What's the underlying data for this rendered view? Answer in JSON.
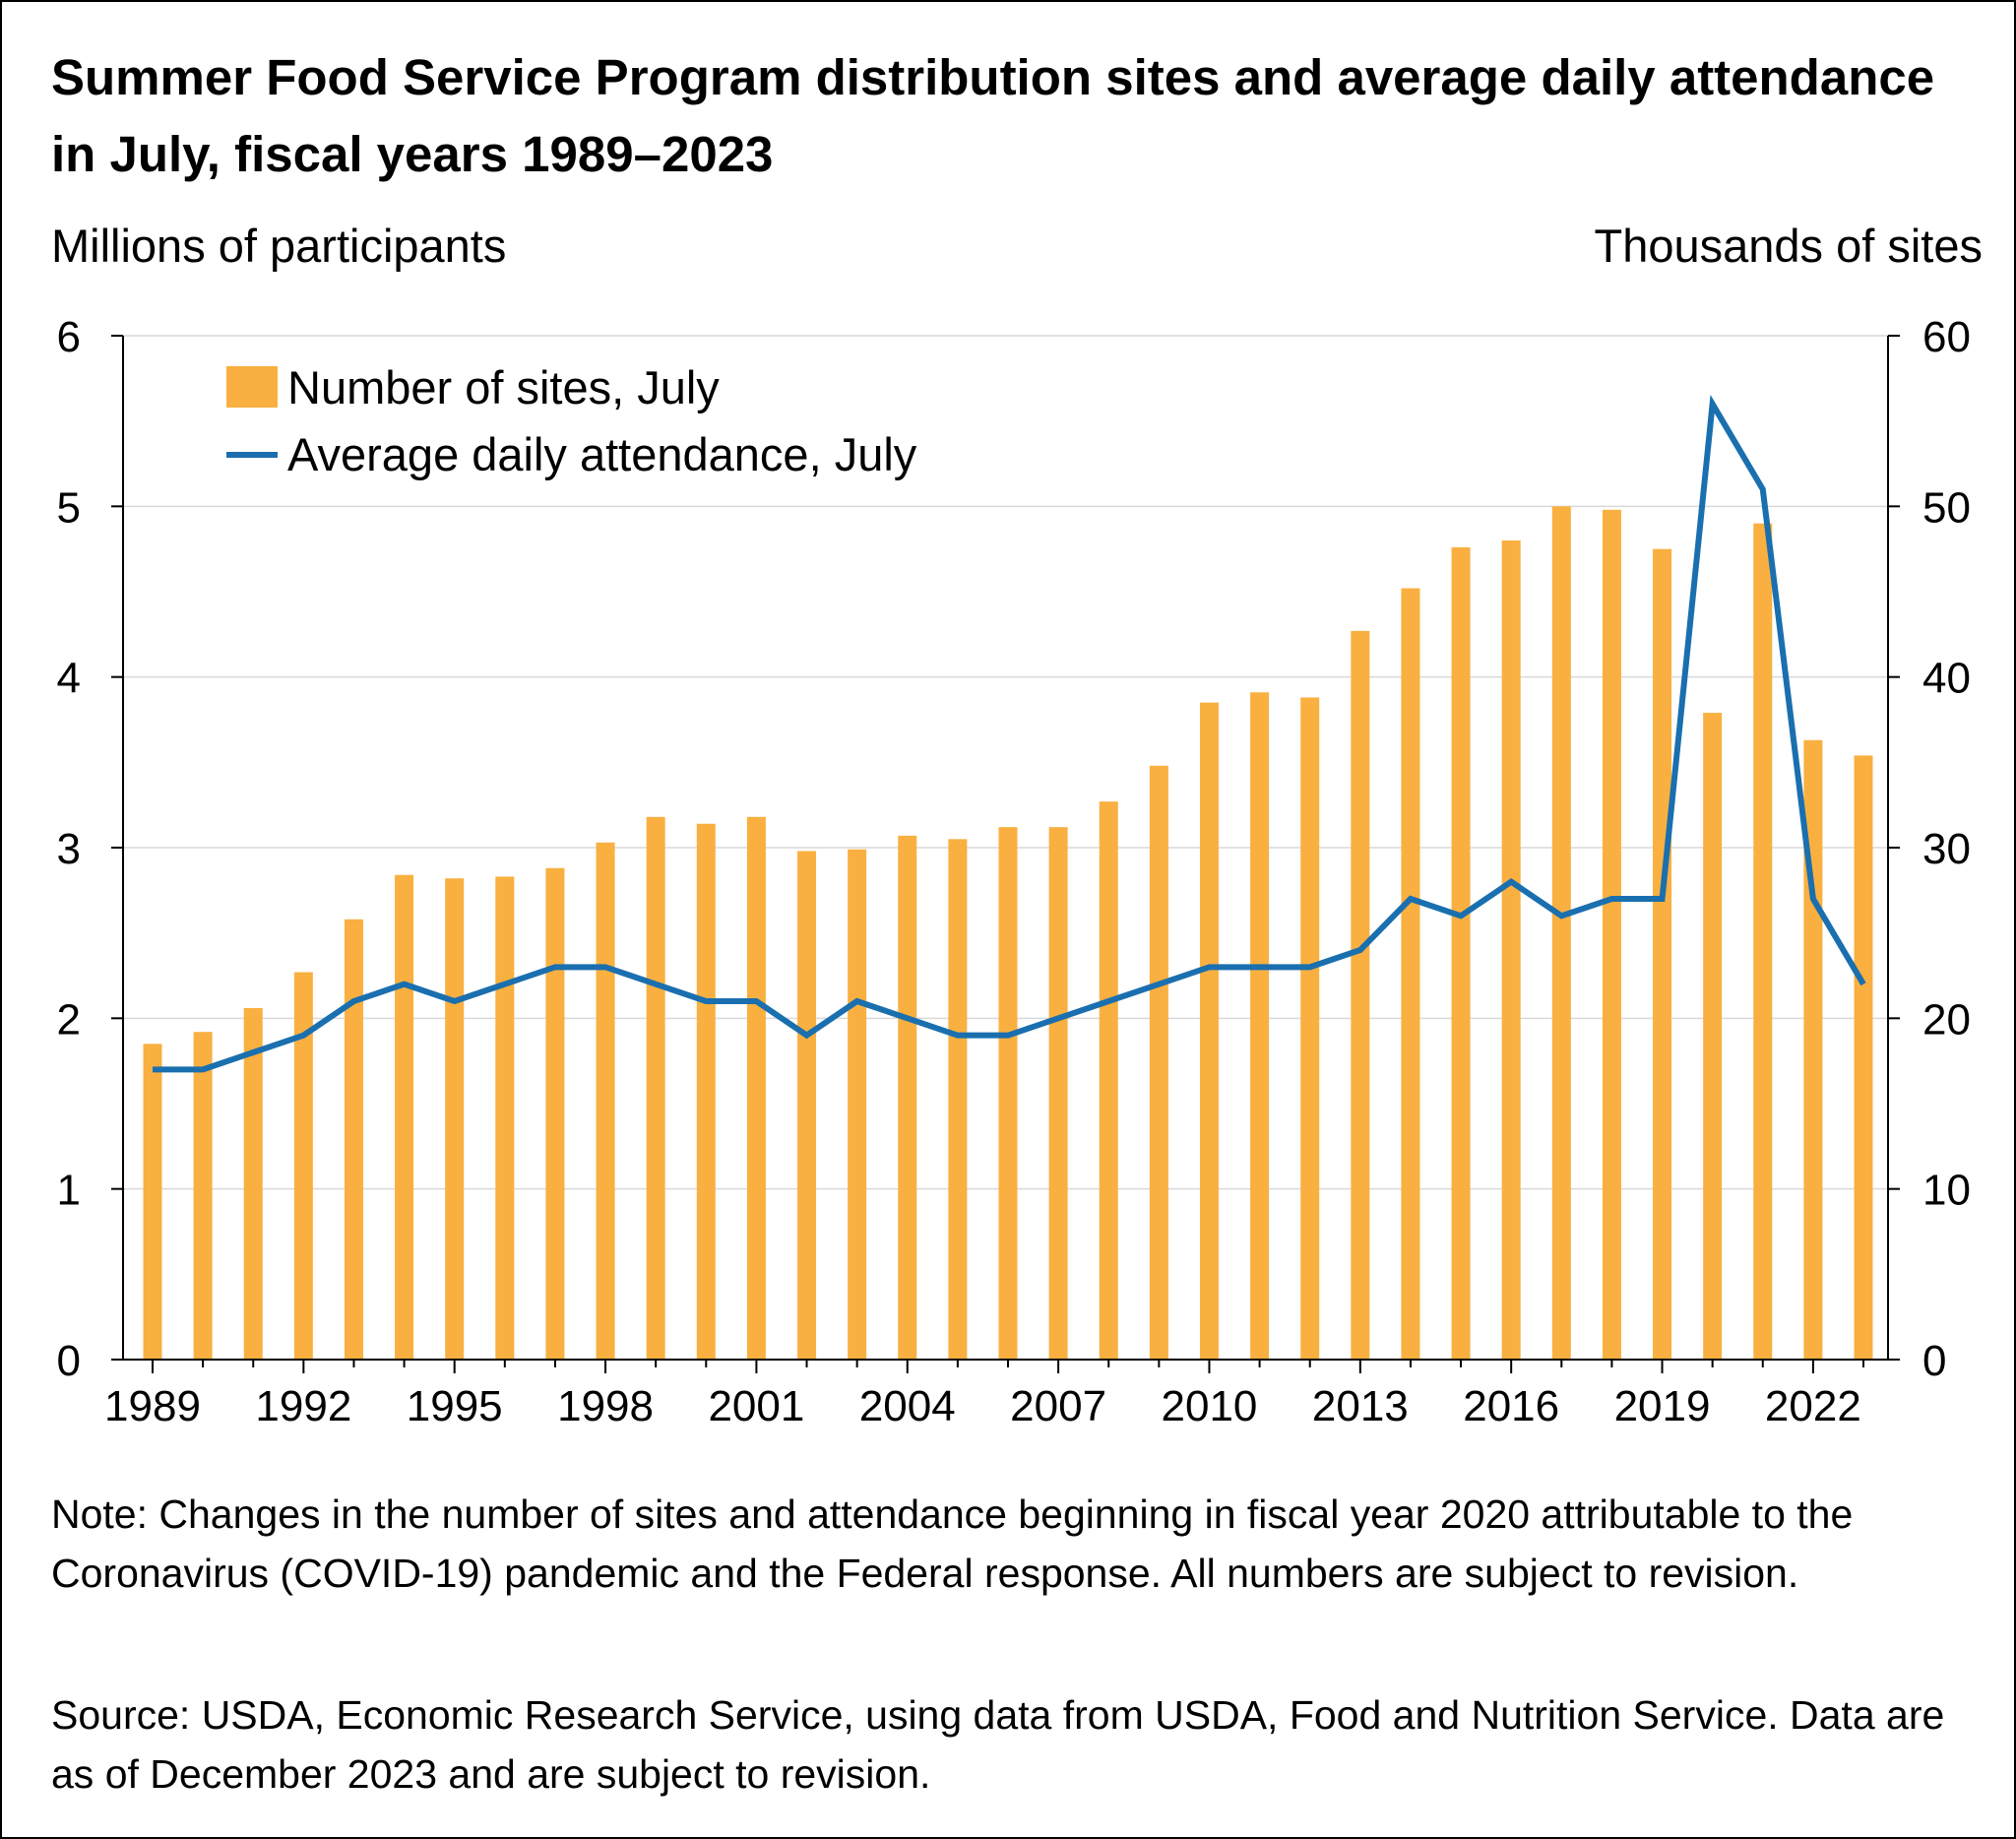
{
  "title": "Summer Food Service Program distribution sites and average daily attendance in July, fiscal years 1989–2023",
  "note": "Note: Changes in the number of sites and attendance beginning in fiscal year 2020 attributable to the Coronavirus (COVID-19) pandemic and the Federal response. All numbers are subject to revision.",
  "source": "Source: USDA, Economic Research Service, using data from USDA, Food and Nutrition Service. Data are as of December 2023 and are subject to revision.",
  "colors": {
    "bars": "#F9B040",
    "line": "#1A6FAF",
    "grid": "#D9D9D9",
    "axis": "#000000"
  },
  "chart_data": {
    "type": "bar+line",
    "title": "Summer Food Service Program distribution sites and average daily attendance in July, fiscal years 1989–2023",
    "ylabel_left": "Millions of participants",
    "ylabel_right": "Thousands of sites",
    "ylim_left": [
      0,
      6
    ],
    "ylim_right": [
      0,
      60
    ],
    "yticks_left": [
      "0",
      "1",
      "2",
      "3",
      "4",
      "5",
      "6"
    ],
    "yticks_right": [
      "0",
      "10",
      "20",
      "30",
      "40",
      "50",
      "60"
    ],
    "xtick_labels": [
      "1989",
      "1992",
      "1995",
      "1998",
      "2001",
      "2004",
      "2007",
      "2010",
      "2013",
      "2016",
      "2019",
      "2022"
    ],
    "legend": {
      "position": "top-left",
      "bars_label": "Number of sites, July",
      "line_label": "Average daily attendance, July"
    },
    "years": [
      1989,
      1990,
      1991,
      1992,
      1993,
      1994,
      1995,
      1996,
      1997,
      1998,
      1999,
      2000,
      2001,
      2002,
      2003,
      2004,
      2005,
      2006,
      2007,
      2008,
      2009,
      2010,
      2011,
      2012,
      2013,
      2014,
      2015,
      2016,
      2017,
      2018,
      2019,
      2020,
      2021,
      2022,
      2023
    ],
    "series": [
      {
        "name": "Number of sites, July",
        "axis": "right",
        "type": "bar",
        "values": [
          18.5,
          19.2,
          20.6,
          22.7,
          25.8,
          28.4,
          28.2,
          28.3,
          28.8,
          30.3,
          31.8,
          31.4,
          31.8,
          29.8,
          29.9,
          30.7,
          30.5,
          31.2,
          31.2,
          32.7,
          34.8,
          38.5,
          39.1,
          38.8,
          42.7,
          45.2,
          47.6,
          48.0,
          50.0,
          49.8,
          47.5,
          37.9,
          49.0,
          36.3,
          35.4
        ]
      },
      {
        "name": "Average daily attendance, July",
        "axis": "left",
        "type": "line",
        "values": [
          1.7,
          1.7,
          1.8,
          1.9,
          2.1,
          2.2,
          2.1,
          2.2,
          2.3,
          2.3,
          2.2,
          2.1,
          2.1,
          1.9,
          2.1,
          2.0,
          1.9,
          1.9,
          2.0,
          2.1,
          2.2,
          2.3,
          2.3,
          2.3,
          2.4,
          2.7,
          2.6,
          2.8,
          2.6,
          2.7,
          2.7,
          5.6,
          5.1,
          2.7,
          2.2
        ]
      }
    ]
  }
}
